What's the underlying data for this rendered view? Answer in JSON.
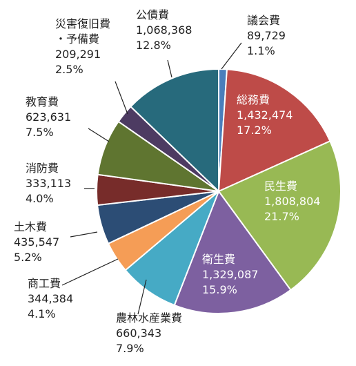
{
  "chart_data": {
    "type": "pie",
    "start_angle_deg": 90,
    "direction": "clockwise",
    "slices": [
      {
        "name": "議会費",
        "value": 89729,
        "value_label": "89,729",
        "percent_label": "1.1%",
        "color": "#4a7ebb"
      },
      {
        "name": "総務費",
        "value": 1432474,
        "value_label": "1,432,474",
        "percent_label": "17.2%",
        "color": "#be4b48"
      },
      {
        "name": "民生費",
        "value": 1808804,
        "value_label": "1,808,804",
        "percent_label": "21.7%",
        "color": "#98b954"
      },
      {
        "name": "衛生費",
        "value": 1329087,
        "value_label": "1,329,087",
        "percent_label": "15.9%",
        "color": "#7d60a0"
      },
      {
        "name": "農林水産業費",
        "value": 660343,
        "value_label": "660,343",
        "percent_label": "7.9%",
        "color": "#46aac5"
      },
      {
        "name": "商工費",
        "value": 344384,
        "value_label": "344,384",
        "percent_label": "4.1%",
        "color": "#f59d56"
      },
      {
        "name": "土木費",
        "value": 435547,
        "value_label": "435,547",
        "percent_label": "5.2%",
        "color": "#2c4d75"
      },
      {
        "name": "消防費",
        "value": 333113,
        "value_label": "333,113",
        "percent_label": "4.0%",
        "color": "#772c2a"
      },
      {
        "name": "教育費",
        "value": 623631,
        "value_label": "623,631",
        "percent_label": "7.5%",
        "color": "#5f7530"
      },
      {
        "name": "災害復旧費\n・予備費",
        "value": 209291,
        "value_label": "209,291",
        "percent_label": "2.5%",
        "color": "#4d3b62"
      },
      {
        "name": "公債費",
        "value": 1068368,
        "value_label": "1,068,368",
        "percent_label": "12.8%",
        "color": "#276a7c"
      }
    ]
  }
}
